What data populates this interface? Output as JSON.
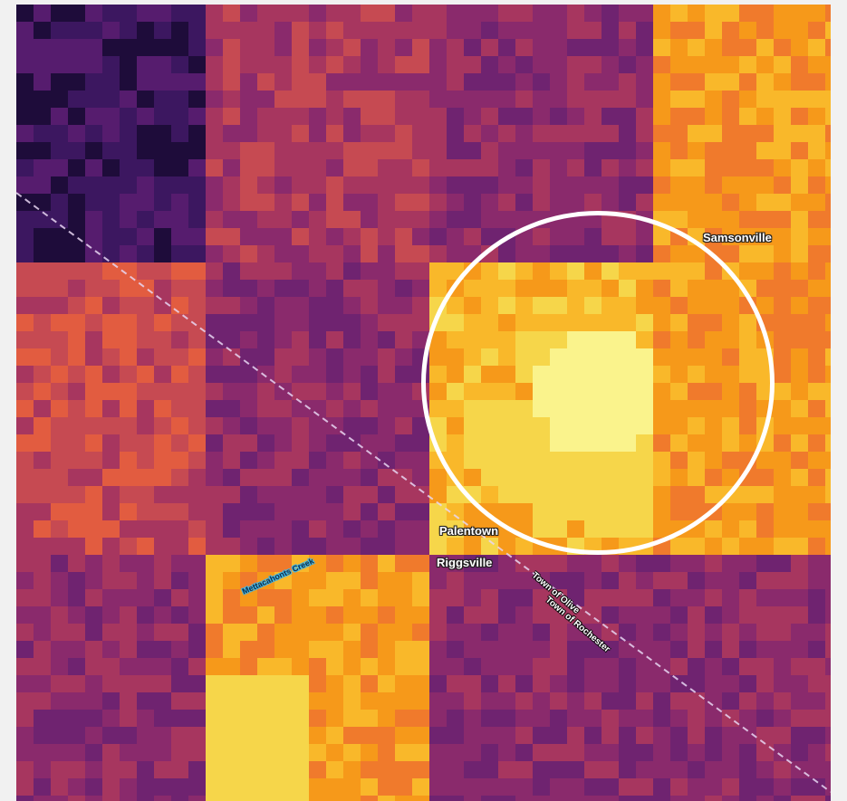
{
  "map": {
    "labels": {
      "samsonville": "Samsonville",
      "palentown": "Palentown",
      "riggsville": "Riggsville",
      "town_of_olive": "Town of Olive",
      "town_of_rochester": "Town of Rochester",
      "mettacahonts_creek": "Mettacahonts Creek"
    },
    "colors": {
      "palette": [
        "#1e0c3a",
        "#3c1760",
        "#561c6e",
        "#6f2370",
        "#8a2a6c",
        "#a7365f",
        "#c64a52",
        "#e25c40",
        "#f07a2c",
        "#f6991a",
        "#f9b82a",
        "#f6d64a",
        "#faf38c"
      ],
      "highlight_ring": "#ffffff",
      "boundary_line": "#e8d6f2"
    }
  }
}
